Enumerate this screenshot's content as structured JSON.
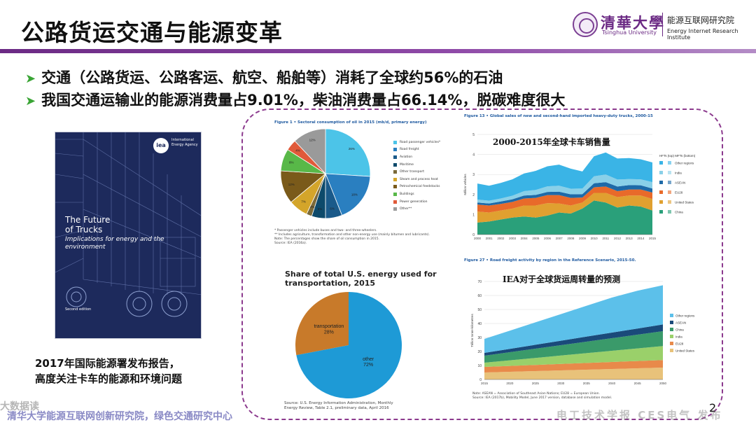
{
  "header": {
    "title": "公路货运交通与能源变革",
    "university_name": "清華大學",
    "university_en": "Tsinghua University",
    "institute_cn": "能源互联网研究院",
    "institute_en": "Energy Internet Research Institute",
    "accent_color": "#6b2a84"
  },
  "bullets": [
    "交通（公路货运、公路客运、航空、船舶等）消耗了全球约56%的石油",
    "我国交通运输业的能源消费量占9.01%，柴油消费量占66.14%，脱碳难度很大"
  ],
  "report_cover": {
    "agency_short": "iea",
    "agency_name": "International Energy Agency",
    "title_line1": "The Future",
    "title_line2": "of Trucks",
    "subtitle": "Implications for energy and the environment",
    "edition": "Second edition"
  },
  "caption": {
    "line1": "2017年国际能源署发布报告，",
    "line2": "高度关注卡车的能源和环境问题"
  },
  "oil_figure": {
    "label": "Figure 1 • Sectoral consumption of oil in 2015 (mb/d, primary energy)",
    "notes": [
      "* Passenger vehicles include buses and two- and three-wheelers.",
      "** Includes agriculture, transformation and other non-energy use (mainly bitumen and lubricants).",
      "Note: The percentages show the share of oil consumption in 2015.",
      "Source: IEA (2016a)."
    ]
  },
  "us_figure": {
    "title_line1": "Share of total U.S. energy used for",
    "title_line2": "transportation, 2015",
    "source": "Source: U.S. Energy Information Administration, Monthly Energy Review, Table 2.1, preliminary data, April 2016"
  },
  "truck_figure": {
    "label": "Figure 13 • Global sales of new and second-hand imported heavy-duty trucks, 2000-15",
    "caption": "2000-2015年全球卡车销售量",
    "legend_head": "HFTs (top)  MFTs (bottom)"
  },
  "freight_figure": {
    "label": "Figure 27 • Road freight activity by region in the Reference Scenario, 2015-50.",
    "caption": "IEA对于全球货运周转量的预测",
    "notes": [
      "Note: ASEAN = Association of Southeast Asian Nations; EU28 = European Union.",
      "Source: IEA (2017b), Mobility Model, June 2017 version, database and simulation model."
    ]
  },
  "page_number": "2",
  "watermarks": {
    "left": "大数据读",
    "bottom_left": "清华大学能源互联网创新研究院，绿色交通研究中心",
    "bottom_right": "电工技术学报 CES电气 发布"
  },
  "chart_data": [
    {
      "type": "pie",
      "title": "Sectoral consumption of oil in 2015 (mb/d, primary energy)",
      "categories": [
        "Road passenger vehicles*",
        "Road freight",
        "Aviation",
        "Maritime",
        "Other transport",
        "Steam and process heat",
        "Petrochemical feedstocks",
        "Buildings",
        "Power generation",
        "Other**"
      ],
      "values": [
        26,
        18,
        6,
        5,
        2,
        7,
        12,
        8,
        4,
        12
      ],
      "value_labels": [
        "26%",
        "18%",
        "6%",
        "5%",
        "2%",
        "7%",
        "12%",
        "8%",
        "4%",
        "12%"
      ],
      "colors": [
        "#4cc4e8",
        "#2a7fc0",
        "#1a5a8a",
        "#0d4a6b",
        "#7a6a3a",
        "#d4a52a",
        "#7a5a1a",
        "#58b848",
        "#e05a3a",
        "#9a9a9a"
      ],
      "legend": "right"
    },
    {
      "type": "pie",
      "title": "Share of total U.S. energy used for transportation, 2015",
      "categories": [
        "transportation",
        "other"
      ],
      "values": [
        28,
        72
      ],
      "value_labels": [
        "28%",
        "72%"
      ],
      "colors": [
        "#c87a2a",
        "#1e9ad6"
      ]
    },
    {
      "type": "area",
      "title": "Global sales of new and second-hand imported heavy-duty trucks, 2000-15",
      "ylabel": "Million vehicles",
      "ylim": [
        0,
        5
      ],
      "yticks": [
        0,
        1,
        2,
        3,
        4,
        5
      ],
      "x": [
        2000,
        2001,
        2002,
        2003,
        2004,
        2005,
        2006,
        2007,
        2008,
        2009,
        2010,
        2011,
        2012,
        2013,
        2014,
        2015
      ],
      "series": [
        {
          "name": "China",
          "color": "#2aa07a",
          "values": [
            0.6,
            0.65,
            0.75,
            0.85,
            0.9,
            0.85,
            0.95,
            1.1,
            1.05,
            1.3,
            1.7,
            1.6,
            1.35,
            1.45,
            1.4,
            1.2
          ]
        },
        {
          "name": "United States",
          "color": "#e0a030",
          "values": [
            0.55,
            0.45,
            0.45,
            0.45,
            0.55,
            0.6,
            0.62,
            0.45,
            0.4,
            0.3,
            0.38,
            0.48,
            0.52,
            0.5,
            0.55,
            0.58
          ]
        },
        {
          "name": "EU28",
          "color": "#e86a2a",
          "values": [
            0.35,
            0.35,
            0.33,
            0.33,
            0.35,
            0.38,
            0.4,
            0.42,
            0.38,
            0.25,
            0.28,
            0.32,
            0.3,
            0.3,
            0.3,
            0.32
          ]
        },
        {
          "name": "ASEAN",
          "color": "#1e6aa8",
          "values": [
            0.1,
            0.1,
            0.12,
            0.13,
            0.15,
            0.15,
            0.16,
            0.17,
            0.18,
            0.17,
            0.2,
            0.22,
            0.23,
            0.22,
            0.21,
            0.2
          ]
        },
        {
          "name": "India",
          "color": "#8ad0e8",
          "values": [
            0.15,
            0.14,
            0.15,
            0.18,
            0.22,
            0.25,
            0.28,
            0.3,
            0.28,
            0.28,
            0.35,
            0.38,
            0.35,
            0.3,
            0.3,
            0.32
          ]
        },
        {
          "name": "Other regions",
          "color": "#3ab4e6",
          "values": [
            0.8,
            0.75,
            0.78,
            0.82,
            0.88,
            0.95,
            1.0,
            1.05,
            1.0,
            0.85,
            1.0,
            1.1,
            1.05,
            1.05,
            1.0,
            0.98
          ]
        }
      ],
      "legend": "right"
    },
    {
      "type": "area",
      "title": "Road freight activity by region in the Reference Scenario, 2015-50",
      "ylabel": "Trillion tonne-kilometres",
      "ylim": [
        0,
        70
      ],
      "yticks": [
        0,
        10,
        20,
        30,
        40,
        50,
        60,
        70
      ],
      "x": [
        2015,
        2020,
        2025,
        2030,
        2035,
        2040,
        2045,
        2050
      ],
      "series": [
        {
          "name": "United States",
          "color": "#e8c27a",
          "values": [
            5,
            5.5,
            6,
            6.5,
            7,
            7.5,
            8,
            8.5
          ]
        },
        {
          "name": "EU28",
          "color": "#e88a4a",
          "values": [
            4,
            4.2,
            4.4,
            4.6,
            4.8,
            5,
            5.2,
            5.4
          ]
        },
        {
          "name": "India",
          "color": "#9ad06a",
          "values": [
            3,
            4,
            5,
            6,
            7,
            8,
            9,
            10
          ]
        },
        {
          "name": "China",
          "color": "#3a9a6a",
          "values": [
            5,
            5.8,
            6.6,
            7.4,
            8.2,
            9,
            9.8,
            10.6
          ]
        },
        {
          "name": "ASEAN",
          "color": "#1a4a7a",
          "values": [
            2,
            2.4,
            2.8,
            3.2,
            3.6,
            4,
            4.4,
            4.8
          ]
        },
        {
          "name": "Other regions",
          "color": "#5cc0ea",
          "values": [
            10,
            13,
            16,
            19,
            22,
            25,
            27,
            28
          ]
        }
      ],
      "legend": "right"
    }
  ]
}
